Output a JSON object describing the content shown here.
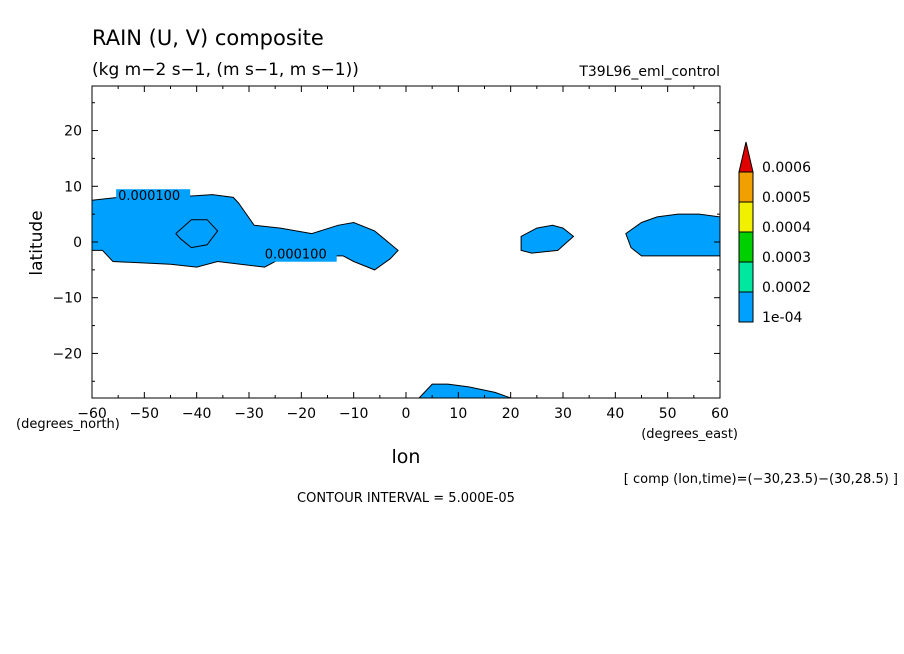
{
  "chart_data": {
    "type": "heatmap",
    "title": "RAIN (U, V) composite",
    "subtitle": "(kg m−2 s−1, (m s−1, m s−1))",
    "experiment": "T39L96_eml_control",
    "xlabel": "lon",
    "ylabel": "latitude",
    "x_units": "(degrees_east)",
    "y_units": "(degrees_north)",
    "xlim": [
      -60,
      60
    ],
    "ylim": [
      -28,
      28
    ],
    "x_ticks": [
      -60,
      -50,
      -40,
      -30,
      -20,
      -10,
      0,
      10,
      20,
      30,
      40,
      50,
      60
    ],
    "x_tick_labels": [
      "−60",
      "−50",
      "−40",
      "−30",
      "−20",
      "−10",
      "0",
      "10",
      "20",
      "30",
      "40",
      "50",
      "60"
    ],
    "y_ticks": [
      -20,
      -10,
      0,
      10,
      20
    ],
    "y_tick_labels": [
      "−20",
      "−10",
      "0",
      "10",
      "20"
    ],
    "contour_interval_text": "CONTOUR INTERVAL = 5.000E-05",
    "comp_text": "[ comp (lon,time)=(−30,23.5)−(30,28.5) ]",
    "contour_labels": [
      {
        "text": "0.000100",
        "x": -55,
        "y": 7.5
      },
      {
        "text": "0.000100",
        "x": -27,
        "y": -3
      }
    ],
    "colorbar": {
      "levels": [
        "1e-04",
        "0.0002",
        "0.0003",
        "0.0004",
        "0.0005",
        "0.0006"
      ],
      "colors": [
        "#00a0ff",
        "#00e8a0",
        "#00d000",
        "#f0f000",
        "#f0a000",
        "#e00000"
      ]
    },
    "regions": [
      {
        "level": "1e-04",
        "points": [
          [
            -60,
            7.5
          ],
          [
            -55,
            8
          ],
          [
            -45,
            8
          ],
          [
            -37,
            8.5
          ],
          [
            -33,
            8
          ],
          [
            -32,
            7
          ],
          [
            -29,
            3
          ],
          [
            -24,
            2.5
          ],
          [
            -18,
            1.5
          ],
          [
            -13,
            3
          ],
          [
            -10,
            3.5
          ],
          [
            -6,
            2
          ],
          [
            -1.5,
            -1.5
          ],
          [
            -3,
            -3
          ],
          [
            -6,
            -5
          ],
          [
            -10,
            -3.5
          ],
          [
            -12,
            -2.5
          ],
          [
            -18,
            -2.5
          ],
          [
            -24,
            -3
          ],
          [
            -27,
            -4.5
          ],
          [
            -36,
            -3.5
          ],
          [
            -40,
            -4.5
          ],
          [
            -45,
            -4
          ],
          [
            -56,
            -3.5
          ],
          [
            -58,
            -1.5
          ],
          [
            -60,
            -1.5
          ]
        ]
      },
      {
        "level": "1e-04",
        "points": [
          [
            22,
            1
          ],
          [
            25,
            2.5
          ],
          [
            28,
            3
          ],
          [
            30,
            2.5
          ],
          [
            32,
            1
          ],
          [
            29,
            -1.5
          ],
          [
            24,
            -2
          ],
          [
            22,
            -1.5
          ]
        ]
      },
      {
        "level": "1e-04",
        "points": [
          [
            42,
            1.5
          ],
          [
            45,
            3.5
          ],
          [
            48,
            4.5
          ],
          [
            52,
            5
          ],
          [
            56,
            5
          ],
          [
            60,
            4.5
          ],
          [
            60,
            -2.5
          ],
          [
            57,
            -2.5
          ],
          [
            52,
            -2.5
          ],
          [
            45,
            -2.5
          ],
          [
            43,
            -1
          ]
        ]
      },
      {
        "level": "1e-04",
        "points": [
          [
            2.5,
            -28
          ],
          [
            5,
            -25.5
          ],
          [
            8,
            -25.5
          ],
          [
            12,
            -26
          ],
          [
            17,
            -27
          ],
          [
            20,
            -28
          ]
        ]
      }
    ],
    "contours": [
      {
        "level": "0.00015",
        "points": [
          [
            -44,
            1.5
          ],
          [
            -41,
            4
          ],
          [
            -38,
            4
          ],
          [
            -36,
            2
          ],
          [
            -38,
            -0.5
          ],
          [
            -41,
            -1
          ],
          [
            -43,
            0.5
          ],
          [
            -44,
            1.5
          ]
        ]
      }
    ],
    "grid": false
  }
}
